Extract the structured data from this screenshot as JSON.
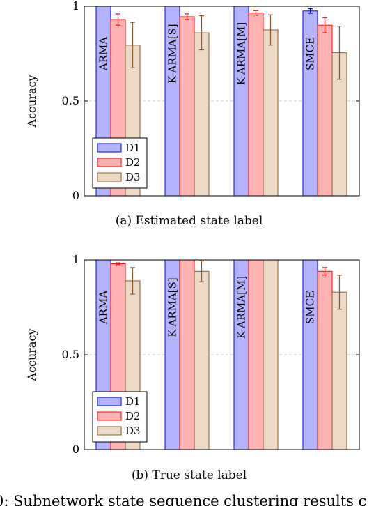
{
  "figure_caption": "0: Subnetwork state sequence clustering results c",
  "colors": {
    "D1_fill": "#b3b3ff",
    "D1_stroke": "#0000ff",
    "D2_fill": "#ffb3b3",
    "D2_stroke": "#ff0000",
    "D3_fill": "#ecd9c6",
    "D3_stroke": "#8b5a2b",
    "grid": "#bfbfbf"
  },
  "chart_data": [
    {
      "type": "bar",
      "title": "(a) Estimated state label",
      "ylabel": "Accuracy",
      "ylim": [
        0,
        1
      ],
      "yticks": [
        "0",
        "0.5",
        "1"
      ],
      "grid": "dashed horizontal at 0.5",
      "legend": "bottom-left",
      "categories": [
        "ARMA",
        "K-ARMA[S]",
        "K-ARMA[M]",
        "SMCE"
      ],
      "series": [
        {
          "name": "D1",
          "values": [
            1.0,
            1.0,
            1.0,
            0.975
          ],
          "errors": [
            0,
            0,
            0,
            0.012
          ]
        },
        {
          "name": "D2",
          "values": [
            0.93,
            0.945,
            0.965,
            0.9
          ],
          "errors": [
            0.03,
            0.015,
            0.012,
            0.04
          ]
        },
        {
          "name": "D3",
          "values": [
            0.795,
            0.86,
            0.875,
            0.755
          ],
          "errors": [
            0.12,
            0.09,
            0.08,
            0.14
          ]
        }
      ]
    },
    {
      "type": "bar",
      "title": "(b) True state label",
      "ylabel": "Accuracy",
      "ylim": [
        0,
        1
      ],
      "yticks": [
        "0",
        "0.5",
        "1"
      ],
      "grid": "dashed horizontal at 0.5",
      "legend": "bottom-left",
      "categories": [
        "ARMA",
        "K-ARMA[S]",
        "K-ARMA[M]",
        "SMCE"
      ],
      "series": [
        {
          "name": "D1",
          "values": [
            1.0,
            1.0,
            1.0,
            1.0
          ],
          "errors": [
            0,
            0,
            0,
            0
          ]
        },
        {
          "name": "D2",
          "values": [
            0.98,
            1.0,
            1.0,
            0.94
          ],
          "errors": [
            0.005,
            0,
            0,
            0.02
          ]
        },
        {
          "name": "D3",
          "values": [
            0.89,
            0.94,
            1.0,
            0.83
          ],
          "errors": [
            0.07,
            0.055,
            0,
            0.09
          ]
        }
      ]
    }
  ]
}
